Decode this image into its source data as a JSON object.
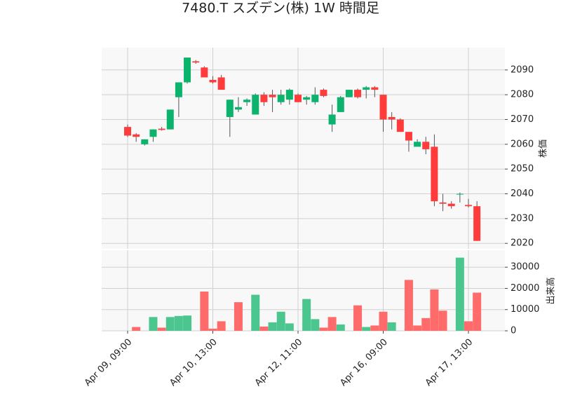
{
  "chart_data": {
    "type": "candlestick",
    "title": "7480.T スズデン(株) 1W 時間足",
    "y_label": "株価",
    "y2_label": "出来高",
    "categories": [
      "Apr 09, 09:00",
      null,
      null,
      null,
      null,
      null,
      null,
      null,
      null,
      null,
      "Apr 10, 13:00",
      null,
      null,
      null,
      null,
      null,
      null,
      null,
      null,
      null,
      "Apr 12, 11:00",
      null,
      null,
      null,
      null,
      null,
      null,
      null,
      null,
      null,
      "Apr 16, 09:00",
      null,
      null,
      null,
      null,
      null,
      null,
      null,
      null,
      null,
      "Apr 17, 13:00",
      null
    ],
    "open": [
      2067,
      2064,
      2060,
      2063,
      2066.3,
      2066,
      2079,
      2085,
      2093.5,
      2091,
      2086,
      2087,
      2071,
      2074,
      2077,
      2072,
      2080,
      2080,
      2077,
      2078,
      2080,
      2078,
      2077,
      2082,
      2068,
      2073,
      2079,
      2082,
      2082,
      2083,
      2080,
      2071,
      2070,
      2065,
      2059,
      2061,
      2059,
      2036.5,
      2036,
      2040,
      2035.5,
      2035
    ],
    "high": [
      2068,
      2064.5,
      2062,
      2066,
      2067,
      2074,
      2085,
      2095,
      2094,
      2091.5,
      2087.5,
      2088,
      2078,
      2079,
      2078.5,
      2080.5,
      2081,
      2082,
      2082,
      2082.5,
      2080.5,
      2079.5,
      2083,
      2082.5,
      2076,
      2079.5,
      2082,
      2082.5,
      2083.5,
      2083.5,
      2080,
      2073,
      2070.5,
      2065,
      2062,
      2063,
      2064,
      2040,
      2037,
      2040.5,
      2038,
      2037
    ],
    "low": [
      2063,
      2061,
      2059.5,
      2061,
      2065.5,
      2066,
      2071,
      2084.5,
      2092.5,
      2087,
      2084.5,
      2082,
      2063,
      2073,
      2075.5,
      2072,
      2075.5,
      2073,
      2076,
      2076,
      2077,
      2076,
      2076,
      2079,
      2065,
      2073,
      2079,
      2078.5,
      2078.5,
      2079,
      2065,
      2066,
      2065,
      2057,
      2059,
      2056,
      2035,
      2033,
      2034,
      2036.5,
      2034.5,
      2021
    ],
    "close": [
      2063.5,
      2063,
      2062,
      2066,
      2065.8,
      2074,
      2085,
      2095,
      2093,
      2087,
      2085,
      2082,
      2078,
      2075,
      2078,
      2080,
      2077,
      2079,
      2080,
      2082,
      2077,
      2079,
      2080,
      2079.5,
      2072,
      2079,
      2082,
      2079,
      2083,
      2082,
      2070,
      2070,
      2065,
      2061.5,
      2061,
      2058,
      2037,
      2036,
      2035,
      2040,
      2035,
      2021
    ],
    "volume": [
      0,
      1800,
      0,
      6500,
      1500,
      6500,
      7000,
      7200,
      0,
      18500,
      1000,
      4500,
      0,
      13500,
      0,
      17000,
      2000,
      4000,
      9000,
      3500,
      0,
      15000,
      5500,
      1500,
      6500,
      3000,
      0,
      12000,
      1800,
      2500,
      9000,
      4000,
      0,
      24000,
      2500,
      6000,
      19500,
      9500,
      0,
      34500,
      4500,
      18000
    ],
    "up_color": "#0bb36c",
    "down_color": "#ff3b3b",
    "volume_up_color": "#4cc68f",
    "volume_down_color": "#ff6b6b",
    "ylim": [
      2017.8,
      2099
    ],
    "yticks": [
      2020,
      2030,
      2040,
      2050,
      2060,
      2070,
      2080,
      2090
    ],
    "y2lim": [
      0,
      38000
    ],
    "y2ticks": [
      0,
      10000,
      20000,
      30000
    ],
    "grid": true
  }
}
